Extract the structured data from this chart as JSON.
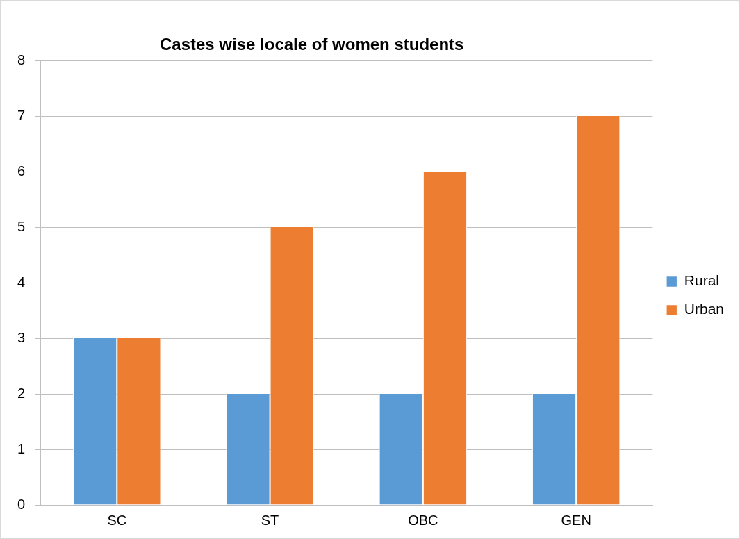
{
  "chart_data": {
    "type": "bar",
    "title": "Castes wise locale of women students",
    "categories": [
      "SC",
      "ST",
      "OBC",
      "GEN"
    ],
    "series": [
      {
        "name": "Rural",
        "color": "#5b9bd5",
        "values": [
          3,
          2,
          2,
          2
        ]
      },
      {
        "name": "Urban",
        "color": "#ed7d31",
        "values": [
          3,
          5,
          6,
          7
        ]
      }
    ],
    "ylim": [
      0,
      8
    ],
    "yticks": [
      0,
      1,
      2,
      3,
      4,
      5,
      6,
      7,
      8
    ],
    "grid": "y",
    "legend": "right"
  }
}
